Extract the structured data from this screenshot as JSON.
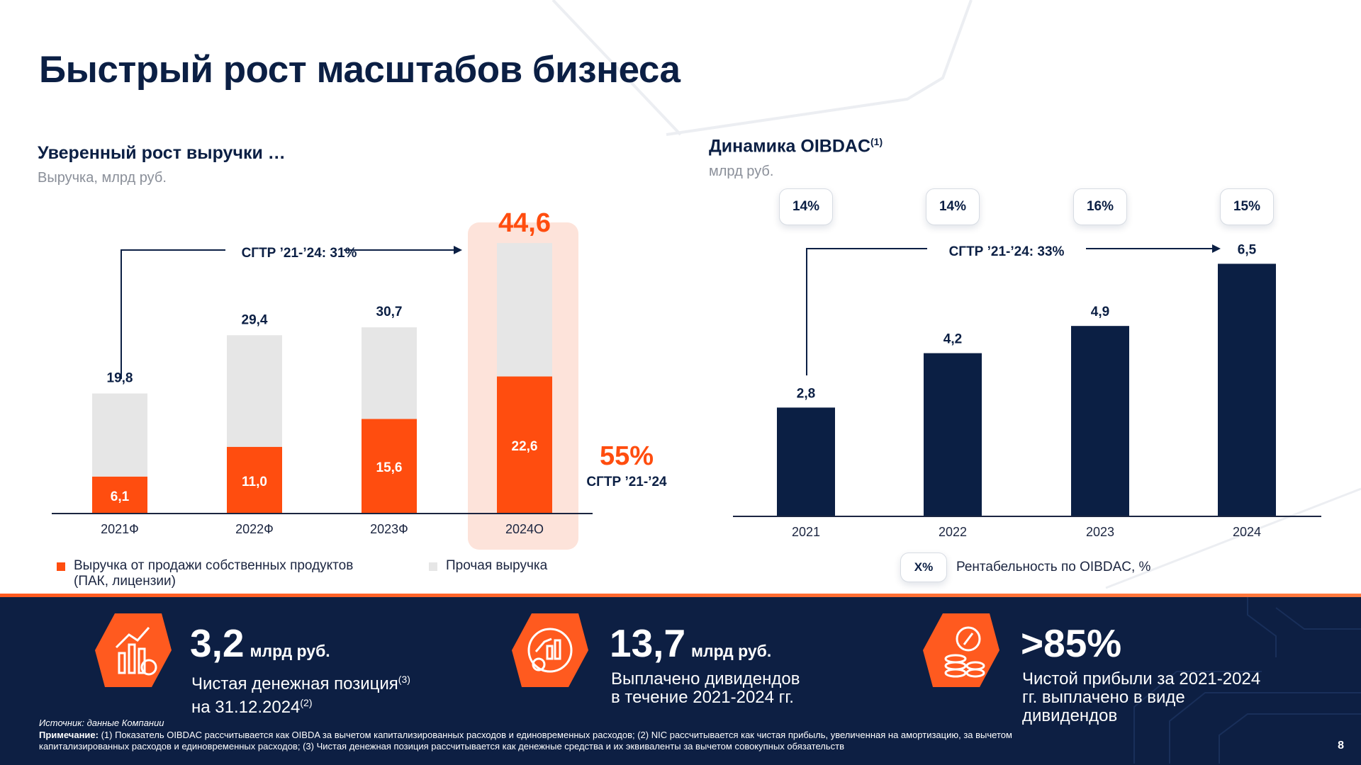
{
  "page": {
    "title": "Быстрый рост масштабов бизнеса",
    "page_number": "8"
  },
  "colors": {
    "navy": "#0b1f44",
    "orange": "#ff4d0f",
    "grey": "#e6e6e6",
    "highlight": "#fde3da"
  },
  "chart_data": [
    {
      "type": "bar",
      "stacked": true,
      "title": "Уверенный рост выручки …",
      "ylabel": "Выручка, млрд руб.",
      "categories": [
        "2021Ф",
        "2022Ф",
        "2023Ф",
        "2024О"
      ],
      "series": [
        {
          "name": "Выручка от продажи собственных продуктов (ПАК, лицензии)",
          "values": [
            6.1,
            11.0,
            15.6,
            22.6
          ],
          "labels": [
            "6,1",
            "11,0",
            "15,6",
            "22,6"
          ]
        },
        {
          "name": "Прочая выручка",
          "values": [
            13.7,
            18.4,
            15.1,
            22.0
          ]
        }
      ],
      "totals": [
        19.8,
        29.4,
        30.7,
        44.6
      ],
      "total_labels": [
        "19,8",
        "29,4",
        "30,7",
        "44,6"
      ],
      "ylim": [
        0,
        48
      ],
      "annotations": {
        "cagr_total": "СГТР ’21-’24: 31%",
        "cagr_own_value": "55%",
        "cagr_own_label": "СГТР ’21-’24"
      },
      "legend": [
        "Выручка от продажи собственных продуктов (ПАК, лицензии)",
        "Прочая выручка"
      ]
    },
    {
      "type": "bar",
      "title": "Динамика OIBDAC",
      "title_sup": "(1)",
      "ylabel": "млрд руб.",
      "categories": [
        "2021",
        "2022",
        "2023",
        "2024"
      ],
      "values": [
        2.8,
        4.2,
        4.9,
        6.5
      ],
      "value_labels": [
        "2,8",
        "4,2",
        "4,9",
        "6,5"
      ],
      "margins": [
        "14%",
        "14%",
        "16%",
        "15%"
      ],
      "ylim": [
        0,
        7.2
      ],
      "annotations": {
        "cagr": "СГТР ’21-’24: 33%"
      },
      "legend": {
        "badge": "X%",
        "label": "Рентабельность по OIBDAC, %"
      }
    }
  ],
  "revenue_legend": {
    "own_line1": "Выручка от продажи собственных продуктов",
    "own_line2": "(ПАК, лицензии)",
    "other": "Прочая выручка"
  },
  "kpis": [
    {
      "value": "3,2",
      "unit": "млрд руб.",
      "desc_line1": "Чистая денежная позиция",
      "desc_sup1": "(3)",
      "desc_line2": "на 31.12.2024",
      "desc_sup2": "(2)",
      "icon": "chart-coin-icon"
    },
    {
      "value": "13,7",
      "unit": "млрд руб.",
      "desc_line1": "Выплачено дивидендов",
      "desc_line2": "в течение 2021-2024 гг.",
      "icon": "gear-chart-icon"
    },
    {
      "value": ">85%",
      "desc_line1": "Чистой прибыли за 2021-2024",
      "desc_line2": "гг. выплачено в виде",
      "desc_line3": "дивидендов",
      "icon": "percent-coins-icon"
    }
  ],
  "footnotes": {
    "source": "Источник: данные Компании",
    "note_label": "Примечание:",
    "note_text": " (1) Показатель OIBDAC рассчитывается как OIBDA за вычетом капитализированных расходов и единовременных расходов; (2) NIC рассчитывается как чистая прибыль, увеличенная на амортизацию, за вычетом",
    "note_text2": "капитализированных расходов и единовременных расходов; (3) Чистая денежная позиция рассчитывается как денежные средства и их эквиваленты за вычетом совокупных обязательств"
  }
}
